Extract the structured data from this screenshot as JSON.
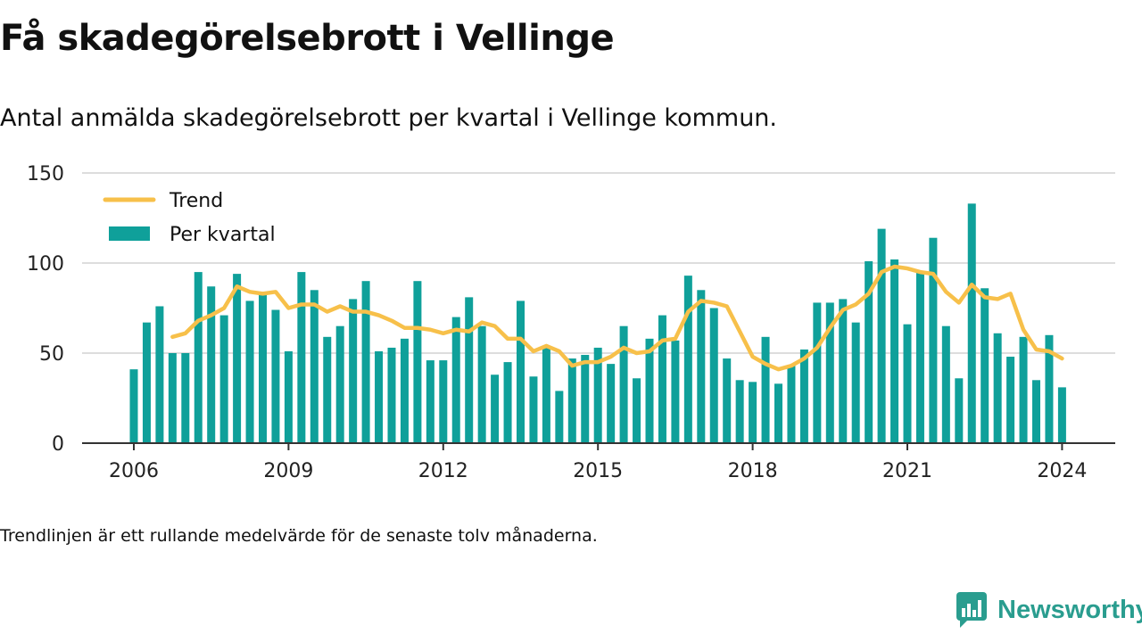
{
  "title": "Få skadegörelsebrott i Vellinge",
  "subtitle": "Antal anmälda skadegörelsebrott per kvartal i Vellinge kommun.",
  "footnote": "Trendlinjen är ett rullande medelvärde för de senaste tolv månaderna.",
  "brand": {
    "name": "Newsworthy",
    "icon": "newsworthy-logo-icon",
    "color": "#2a9d8f"
  },
  "chart_data": {
    "type": "bar",
    "bar_color": "#0fa09a",
    "trend_color": "#f7c04a",
    "grid": true,
    "legend_position": "top-left",
    "legend": [
      {
        "label": "Trend",
        "kind": "line"
      },
      {
        "label": "Per kvartal",
        "kind": "bar"
      }
    ],
    "ylim": [
      0,
      150
    ],
    "y_ticks": [
      0,
      50,
      100,
      150
    ],
    "x_ticks": [
      "2006",
      "2009",
      "2012",
      "2015",
      "2018",
      "2021",
      "2024"
    ],
    "quarters": [
      "2006-Q1",
      "2006-Q2",
      "2006-Q3",
      "2006-Q4",
      "2007-Q1",
      "2007-Q2",
      "2007-Q3",
      "2007-Q4",
      "2008-Q1",
      "2008-Q2",
      "2008-Q3",
      "2008-Q4",
      "2009-Q1",
      "2009-Q2",
      "2009-Q3",
      "2009-Q4",
      "2010-Q1",
      "2010-Q2",
      "2010-Q3",
      "2010-Q4",
      "2011-Q1",
      "2011-Q2",
      "2011-Q3",
      "2011-Q4",
      "2012-Q1",
      "2012-Q2",
      "2012-Q3",
      "2012-Q4",
      "2013-Q1",
      "2013-Q2",
      "2013-Q3",
      "2013-Q4",
      "2014-Q1",
      "2014-Q2",
      "2014-Q3",
      "2014-Q4",
      "2015-Q1",
      "2015-Q2",
      "2015-Q3",
      "2015-Q4",
      "2016-Q1",
      "2016-Q2",
      "2016-Q3",
      "2016-Q4",
      "2017-Q1",
      "2017-Q2",
      "2017-Q3",
      "2017-Q4",
      "2018-Q1",
      "2018-Q2",
      "2018-Q3",
      "2018-Q4",
      "2019-Q1",
      "2019-Q2",
      "2019-Q3",
      "2019-Q4",
      "2020-Q1",
      "2020-Q2",
      "2020-Q3",
      "2020-Q4",
      "2021-Q1",
      "2021-Q2",
      "2021-Q3",
      "2021-Q4",
      "2022-Q1",
      "2022-Q2",
      "2022-Q3",
      "2022-Q4",
      "2023-Q1",
      "2023-Q2",
      "2023-Q3",
      "2023-Q4",
      "2024-Q1"
    ],
    "series": [
      {
        "name": "Per kvartal",
        "values": [
          41,
          67,
          76,
          50,
          50,
          95,
          87,
          71,
          94,
          79,
          84,
          74,
          51,
          95,
          85,
          59,
          65,
          80,
          90,
          51,
          53,
          58,
          90,
          46,
          46,
          70,
          81,
          65,
          38,
          45,
          79,
          37,
          53,
          29,
          47,
          49,
          53,
          44,
          65,
          36,
          58,
          71,
          57,
          93,
          85,
          75,
          47,
          35,
          34,
          59,
          33,
          43,
          52,
          78,
          78,
          80,
          67,
          101,
          119,
          102,
          66,
          95,
          114,
          65,
          36,
          133,
          86,
          61,
          48,
          59,
          35,
          60,
          31
        ]
      },
      {
        "name": "Trend",
        "values": [
          null,
          null,
          null,
          59,
          61,
          68,
          71,
          75,
          87,
          84,
          83,
          84,
          75,
          77,
          77,
          73,
          76,
          73,
          73,
          71,
          68,
          64,
          64,
          63,
          61,
          63,
          62,
          67,
          65,
          58,
          58,
          51,
          54,
          51,
          43,
          45,
          45,
          48,
          53,
          50,
          51,
          57,
          58,
          73,
          79,
          78,
          76,
          62,
          48,
          44,
          41,
          43,
          47,
          53,
          64,
          74,
          77,
          83,
          95,
          98,
          97,
          95,
          94,
          84,
          78,
          88,
          81,
          80,
          83,
          63,
          52,
          51,
          47
        ]
      }
    ]
  }
}
